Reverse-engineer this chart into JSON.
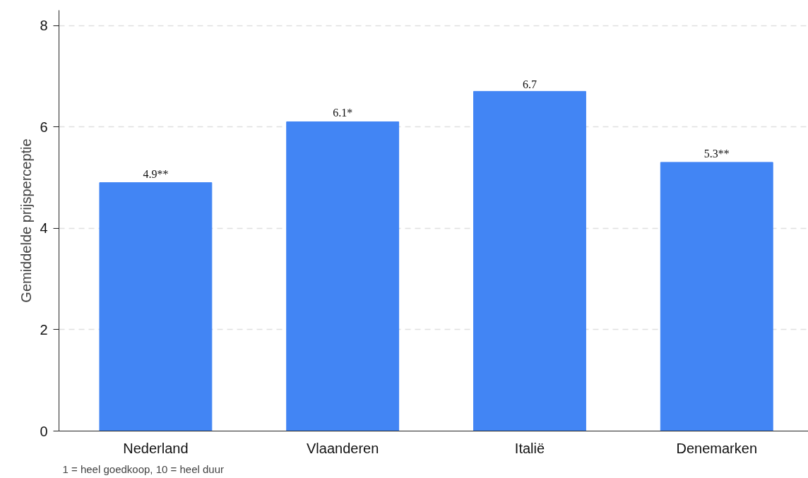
{
  "chart_data": {
    "type": "bar",
    "ylabel": "Gemiddelde prijsperceptie",
    "categories": [
      "Nederland",
      "Vlaanderen",
      "Italië",
      "Denemarken"
    ],
    "values": [
      4.9,
      6.1,
      6.7,
      5.3
    ],
    "value_labels": [
      "4.9**",
      "6.1*",
      "6.7",
      "5.3**"
    ],
    "color": "#4285f4",
    "ylim": [
      0,
      8.3
    ],
    "yticks": [
      0,
      2,
      4,
      6,
      8
    ],
    "grid": "y",
    "annotations": [
      "1 = heel goedkoop, 10 = heel duur"
    ]
  }
}
